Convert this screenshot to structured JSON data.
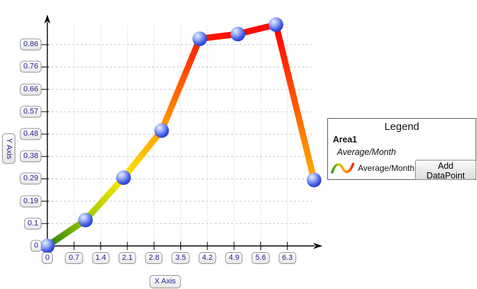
{
  "chart_data": {
    "type": "line",
    "title": "",
    "xlabel": "X Axis",
    "ylabel": "Y Axis",
    "x": [
      0,
      1,
      2,
      3,
      4,
      5,
      6,
      7
    ],
    "y": [
      0,
      0.11,
      0.29,
      0.49,
      0.88,
      0.9,
      0.94,
      0.28
    ],
    "series_name": "Average/Month",
    "xlim": [
      0,
      7.2
    ],
    "ylim": [
      0,
      0.95
    ],
    "x_tick_labels": [
      "0",
      "0.7",
      "1.4",
      "2.1",
      "2.8",
      "3.5",
      "4.2",
      "4.9",
      "5.6",
      "6.3"
    ],
    "x_tick_values": [
      0,
      0.7,
      1.4,
      2.1,
      2.8,
      3.5,
      4.2,
      4.9,
      5.6,
      6.3
    ],
    "y_tick_labels": [
      "0",
      "0.1",
      "0.19",
      "0.29",
      "0.38",
      "0.48",
      "0.57",
      "0.66",
      "0.76",
      "0.86"
    ],
    "y_tick_values": [
      0,
      0.095,
      0.19,
      0.285,
      0.38,
      0.475,
      0.57,
      0.665,
      0.76,
      0.855
    ],
    "grid": true,
    "grid_color": "#c8c8c8",
    "axis_color": "#000000",
    "tick_label_color": "#1e1e8f",
    "line_width": 9,
    "point_colors": [
      "#267d08",
      "#9cc900",
      "#ffe600",
      "#ff9e00",
      "#ff1c00",
      "#ff0d00",
      "#ff0000",
      "#ffb000"
    ],
    "marker": {
      "shape": "sphere",
      "radius": 10.5,
      "gradient": [
        "#e4edff",
        "#9db1f5",
        "#4a63e9",
        "#1b31bf"
      ]
    }
  },
  "legend": {
    "title": "Legend",
    "area_label": "Area1",
    "series_sublabel": "Average/Month",
    "item_label": "Average/Month",
    "button_label": "Add DataPoint",
    "icon_gradient": [
      "#2f940b",
      "#cfd000",
      "#ff9000",
      "#ff2500"
    ]
  }
}
